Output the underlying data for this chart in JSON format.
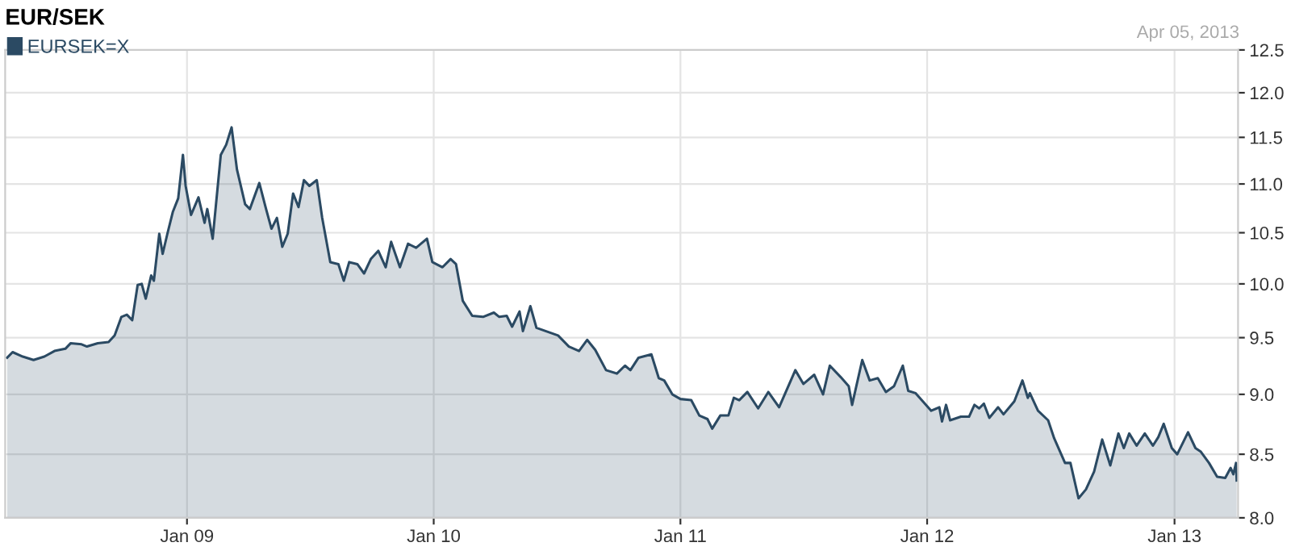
{
  "chart_data": {
    "type": "area",
    "title": "EUR/SEK",
    "annotations": [
      "Apr 05, 2013"
    ],
    "log": "y",
    "grid": true,
    "legend": "top left",
    "xlim": [
      "2008-04-07",
      "2013-04-05"
    ],
    "xticks": [
      {
        "value": "2009-01-01",
        "label": "Jan 09"
      },
      {
        "value": "2010-01-01",
        "label": "Jan 10"
      },
      {
        "value": "2011-01-01",
        "label": "Jan 11"
      },
      {
        "value": "2012-01-01",
        "label": "Jan 12"
      },
      {
        "value": "2013-01-01",
        "label": "Jan 13"
      }
    ],
    "ylim": [
      8.0,
      12.5
    ],
    "yticks": [
      {
        "value": 8,
        "label": "8.0"
      },
      8.5,
      {
        "value": 9,
        "label": "9.0"
      },
      9.5,
      {
        "value": 10,
        "label": "10.0"
      },
      10.5,
      {
        "value": 11,
        "label": "11.0"
      },
      11.5,
      {
        "value": 12,
        "label": "12.0"
      },
      12.5
    ],
    "series": [
      {
        "name": "EURSEK=X",
        "color": "#2b4a63",
        "x": [
          "2008-04-10",
          "2008-04-18",
          "2008-05-03",
          "2008-05-19",
          "2008-06-04",
          "2008-06-19",
          "2008-07-05",
          "2008-07-13",
          "2008-07-29",
          "2008-08-06",
          "2008-08-22",
          "2008-09-07",
          "2008-09-16",
          "2008-09-26",
          "2008-10-04",
          "2008-10-12",
          "2008-10-20",
          "2008-10-26",
          "2008-11-01",
          "2008-11-09",
          "2008-11-13",
          "2008-11-21",
          "2008-11-26",
          "2008-12-03",
          "2008-12-11",
          "2008-12-19",
          "2008-12-26",
          "2008-12-30",
          "2009-01-07",
          "2009-01-18",
          "2009-01-27",
          "2009-01-31",
          "2009-02-08",
          "2009-02-20",
          "2009-02-28",
          "2009-03-08",
          "2009-03-16",
          "2009-03-28",
          "2009-04-04",
          "2009-04-18",
          "2009-04-28",
          "2009-05-06",
          "2009-05-14",
          "2009-05-22",
          "2009-05-30",
          "2009-06-07",
          "2009-06-15",
          "2009-06-23",
          "2009-07-01",
          "2009-07-12",
          "2009-07-20",
          "2009-08-01",
          "2009-08-13",
          "2009-08-21",
          "2009-08-29",
          "2009-09-10",
          "2009-09-20",
          "2009-09-30",
          "2009-10-11",
          "2009-10-22",
          "2009-10-30",
          "2009-11-12",
          "2009-11-24",
          "2009-12-06",
          "2009-12-22",
          "2009-12-30",
          "2010-01-14",
          "2010-01-26",
          "2010-02-03",
          "2010-02-13",
          "2010-02-27",
          "2010-03-15",
          "2010-03-31",
          "2010-04-08",
          "2010-04-19",
          "2010-04-27",
          "2010-05-08",
          "2010-05-13",
          "2010-05-24",
          "2010-06-02",
          "2010-07-04",
          "2010-07-20",
          "2010-08-04",
          "2010-08-16",
          "2010-08-28",
          "2010-09-13",
          "2010-09-29",
          "2010-10-11",
          "2010-10-19",
          "2010-10-31",
          "2010-11-19",
          "2010-11-30",
          "2010-12-08",
          "2010-12-20",
          "2011-01-01",
          "2011-01-17",
          "2011-01-29",
          "2011-02-10",
          "2011-02-17",
          "2011-03-01",
          "2011-03-13",
          "2011-03-21",
          "2011-03-29",
          "2011-04-10",
          "2011-04-26",
          "2011-05-11",
          "2011-05-27",
          "2011-06-20",
          "2011-07-02",
          "2011-07-18",
          "2011-07-31",
          "2011-08-10",
          "2011-08-26",
          "2011-09-07",
          "2011-09-12",
          "2011-09-27",
          "2011-10-08",
          "2011-10-20",
          "2011-11-01",
          "2011-11-13",
          "2011-11-26",
          "2011-12-04",
          "2011-12-15",
          "2012-01-07",
          "2012-01-19",
          "2012-01-23",
          "2012-01-29",
          "2012-02-04",
          "2012-02-20",
          "2012-03-03",
          "2012-03-11",
          "2012-03-18",
          "2012-03-25",
          "2012-04-02",
          "2012-04-15",
          "2012-04-23",
          "2012-05-09",
          "2012-05-21",
          "2012-05-29",
          "2012-06-01",
          "2012-06-13",
          "2012-06-28",
          "2012-07-07",
          "2012-07-23",
          "2012-07-31",
          "2012-08-12",
          "2012-08-23",
          "2012-09-04",
          "2012-09-16",
          "2012-09-28",
          "2012-10-10",
          "2012-10-18",
          "2012-10-26",
          "2012-11-06",
          "2012-11-18",
          "2012-11-30",
          "2012-12-08",
          "2012-12-16",
          "2012-12-28",
          "2013-01-05",
          "2013-01-21",
          "2013-02-01",
          "2013-02-09",
          "2013-02-21",
          "2013-03-05",
          "2013-03-17",
          "2013-03-25",
          "2013-03-29",
          "2013-04-02",
          "2013-04-03"
        ],
        "values": [
          9.32,
          9.37,
          9.33,
          9.3,
          9.33,
          9.38,
          9.4,
          9.45,
          9.44,
          9.42,
          9.45,
          9.46,
          9.52,
          9.69,
          9.71,
          9.66,
          9.99,
          10.0,
          9.86,
          10.08,
          10.03,
          10.49,
          10.29,
          10.49,
          10.71,
          10.85,
          11.31,
          10.98,
          10.68,
          10.86,
          10.6,
          10.74,
          10.44,
          11.31,
          11.42,
          11.61,
          11.15,
          10.79,
          10.74,
          11.01,
          10.74,
          10.54,
          10.65,
          10.36,
          10.49,
          10.9,
          10.76,
          11.04,
          10.98,
          11.04,
          10.65,
          10.21,
          10.19,
          10.03,
          10.21,
          10.19,
          10.1,
          10.24,
          10.32,
          10.16,
          10.41,
          10.16,
          10.39,
          10.35,
          10.44,
          10.21,
          10.16,
          10.24,
          10.19,
          9.84,
          9.7,
          9.69,
          9.73,
          9.69,
          9.7,
          9.6,
          9.74,
          9.56,
          9.79,
          9.59,
          9.52,
          9.42,
          9.38,
          9.48,
          9.39,
          9.21,
          9.18,
          9.25,
          9.21,
          9.32,
          9.35,
          9.14,
          9.12,
          9.0,
          8.96,
          8.95,
          8.82,
          8.79,
          8.71,
          8.82,
          8.82,
          8.97,
          8.95,
          9.02,
          8.88,
          9.02,
          8.89,
          9.21,
          9.09,
          9.17,
          9.0,
          9.25,
          9.15,
          9.07,
          8.91,
          9.3,
          9.12,
          9.14,
          9.02,
          9.07,
          9.25,
          9.03,
          9.01,
          8.86,
          8.89,
          8.77,
          8.91,
          8.78,
          8.81,
          8.81,
          8.91,
          8.88,
          8.92,
          8.8,
          8.89,
          8.83,
          8.94,
          9.12,
          8.97,
          9.01,
          8.86,
          8.78,
          8.63,
          8.43,
          8.43,
          8.15,
          8.22,
          8.36,
          8.62,
          8.41,
          8.67,
          8.55,
          8.67,
          8.57,
          8.67,
          8.57,
          8.64,
          8.75,
          8.55,
          8.5,
          8.68,
          8.55,
          8.52,
          8.43,
          8.32,
          8.31,
          8.39,
          8.34,
          8.43,
          8.29
        ]
      }
    ]
  }
}
